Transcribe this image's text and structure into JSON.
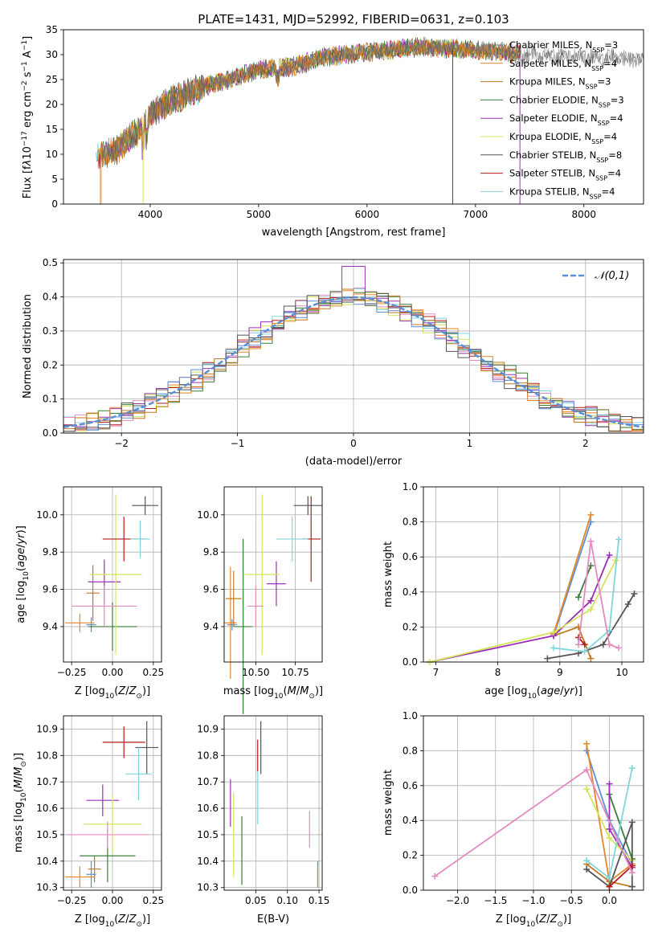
{
  "figure": {
    "title": "PLATE=1431, MJD=52992, FIBERID=0631, z=0.103"
  },
  "models": [
    {
      "name": "Chabrier MILES",
      "nssp": "3",
      "color": "#7f7f7f"
    },
    {
      "name": "Salpeter MILES",
      "nssp": "4",
      "color": "#e5862b"
    },
    {
      "name": "Kroupa MILES",
      "nssp": "3",
      "color": "#c07a20"
    },
    {
      "name": "Chabrier ELODIE",
      "nssp": "3",
      "color": "#3a7d3a"
    },
    {
      "name": "Salpeter ELODIE",
      "nssp": "4",
      "color": "#9b30b5"
    },
    {
      "name": "Kroupa ELODIE",
      "nssp": "4",
      "color": "#d4e35a"
    },
    {
      "name": "Chabrier STELIB",
      "nssp": "8",
      "color": "#555555"
    },
    {
      "name": "Salpeter STELIB",
      "nssp": "4",
      "color": "#b81c1c"
    },
    {
      "name": "Kroupa STELIB",
      "nssp": "4",
      "color": "#7fd6dc"
    }
  ],
  "chart_data": [
    {
      "id": "spectrum",
      "type": "line",
      "xlabel": "wavelength [Angstrom, rest frame]",
      "ylabel": "Flux [f_λ 10^-17 erg cm^-2 s^-1 A^-1]",
      "xlim": [
        3200,
        8550
      ],
      "ylim": [
        0,
        35
      ],
      "xticks": [
        4000,
        5000,
        6000,
        7000,
        8000
      ],
      "yticks": [
        0,
        5,
        10,
        15,
        20,
        25,
        30,
        35
      ],
      "continuum": [
        [
          3500,
          9
        ],
        [
          3700,
          11
        ],
        [
          3900,
          15
        ],
        [
          4000,
          18
        ],
        [
          4200,
          21
        ],
        [
          4500,
          23.5
        ],
        [
          4800,
          25.5
        ],
        [
          5000,
          27
        ],
        [
          5300,
          27.5
        ],
        [
          5600,
          29.5
        ],
        [
          6000,
          30.5
        ],
        [
          6500,
          31.5
        ],
        [
          7000,
          31
        ],
        [
          7500,
          30
        ],
        [
          8000,
          29.5
        ],
        [
          8550,
          29
        ]
      ],
      "legend": "right"
    },
    {
      "id": "residuals",
      "type": "histogram",
      "xlabel": "(data-model)/error",
      "ylabel": "Normed distribution",
      "xlim": [
        -2.5,
        2.5
      ],
      "ylim": [
        0,
        0.51
      ],
      "xticks": [
        -2,
        -1,
        0,
        1,
        2
      ],
      "yticks": [
        0.0,
        0.1,
        0.2,
        0.3,
        0.4,
        0.5
      ],
      "bin_width": 0.1,
      "reference_curve": "𝒩(0,1)",
      "legend": "top-right"
    },
    {
      "id": "age-vs-Z",
      "type": "errorbar",
      "xlabel": "Z [log10(Z/Z⊙)]",
      "ylabel": "age  [log10(age/yr)]",
      "xlim": [
        -0.3,
        0.3
      ],
      "ylim": [
        9.21,
        10.15
      ],
      "xticks": [
        -0.25,
        0.0,
        0.25
      ],
      "yticks": [
        9.4,
        9.6,
        9.8,
        10.0
      ],
      "points": [
        {
          "model": 0,
          "x": -0.13,
          "xerr": 0.03,
          "y": 9.41,
          "yerr": 0.04
        },
        {
          "model": 1,
          "x": -0.2,
          "xerr": 0.09,
          "y": 9.42,
          "yerr": 0.05
        },
        {
          "model": 2,
          "x": -0.12,
          "xerr": 0.04,
          "y": 9.58,
          "yerr": 0.15
        },
        {
          "model": 3,
          "x": 0.0,
          "xerr": 0.15,
          "y": 9.4,
          "yerr": 0.13
        },
        {
          "model": 4,
          "x": -0.05,
          "xerr": 0.1,
          "y": 9.64,
          "yerr": 0.12
        },
        {
          "model": 5,
          "x": 0.02,
          "xerr": 0.16,
          "y": 9.68,
          "yerr": 0.43
        },
        {
          "model": 6,
          "x": 0.2,
          "xerr": 0.08,
          "y": 10.05,
          "yerr": 0.05
        },
        {
          "model": 7,
          "x": 0.07,
          "xerr": 0.13,
          "y": 9.87,
          "yerr": 0.12
        },
        {
          "model": 8,
          "x": 0.17,
          "xerr": 0.06,
          "y": 9.87,
          "yerr": 0.1
        },
        {
          "model": 9,
          "x": -0.05,
          "xerr": 0.2,
          "y": 9.51,
          "yerr": 0.11
        }
      ]
    },
    {
      "id": "age-vs-mass",
      "type": "errorbar",
      "xlabel": "mass [log10(M/M⊙)]",
      "ylabel": "",
      "xlim": [
        10.3,
        10.92
      ],
      "ylim": [
        9.21,
        10.15
      ],
      "xticks": [
        10.5,
        10.75
      ],
      "yticks": [
        9.4,
        9.6,
        9.8,
        10.0
      ],
      "points": [
        {
          "model": 0,
          "x": 10.35,
          "xerr": 0.03,
          "y": 9.41,
          "yerr": 0.03
        },
        {
          "model": 1,
          "x": 10.34,
          "xerr": 0.04,
          "y": 9.42,
          "yerr": 0.3
        },
        {
          "model": 2,
          "x": 10.36,
          "xerr": 0.05,
          "y": 9.55,
          "yerr": 0.15
        },
        {
          "model": 3,
          "x": 10.42,
          "xerr": 0.06,
          "y": 9.4,
          "yerr": 0.47
        },
        {
          "model": 4,
          "x": 10.63,
          "xerr": 0.06,
          "y": 9.63,
          "yerr": 0.12
        },
        {
          "model": 5,
          "x": 10.54,
          "xerr": 0.11,
          "y": 9.68,
          "yerr": 0.43
        },
        {
          "model": 6,
          "x": 10.83,
          "xerr": 0.09,
          "y": 10.05,
          "yerr": 0.05
        },
        {
          "model": 7,
          "x": 10.85,
          "xerr": 0.06,
          "y": 9.87,
          "yerr": 0.23
        },
        {
          "model": 8,
          "x": 10.73,
          "xerr": 0.1,
          "y": 9.87,
          "yerr": 0.12
        },
        {
          "model": 9,
          "x": 10.5,
          "xerr": 0.05,
          "y": 9.51,
          "yerr": 0.11
        }
      ]
    },
    {
      "id": "weight-vs-age",
      "type": "line",
      "xlabel": "age  [log10(age/yr)]",
      "ylabel": "mass weight",
      "xlim": [
        6.8,
        10.35
      ],
      "ylim": [
        0,
        1.0
      ],
      "xticks": [
        7,
        8,
        9,
        10
      ],
      "yticks": [
        0.0,
        0.2,
        0.4,
        0.6,
        0.8,
        1.0
      ],
      "series": [
        {
          "model": 0,
          "x": [
            8.9,
            9.5
          ],
          "y": [
            0.15,
            0.8
          ]
        },
        {
          "model": 1,
          "x": [
            8.9,
            9.5
          ],
          "y": [
            0.16,
            0.84
          ]
        },
        {
          "model": 2,
          "x": [
            8.9,
            9.3,
            9.5
          ],
          "y": [
            0.15,
            0.2,
            0.02
          ]
        },
        {
          "model": 3,
          "x": [
            9.3,
            9.5
          ],
          "y": [
            0.37,
            0.55
          ]
        },
        {
          "model": 4,
          "x": [
            6.9,
            8.9,
            9.5,
            9.8
          ],
          "y": [
            0.0,
            0.15,
            0.35,
            0.61
          ]
        },
        {
          "model": 5,
          "x": [
            6.9,
            8.9,
            9.5,
            9.9
          ],
          "y": [
            0.0,
            0.17,
            0.3,
            0.58
          ]
        },
        {
          "model": 6,
          "x": [
            8.8,
            9.3,
            9.7,
            10.1,
            10.2
          ],
          "y": [
            0.02,
            0.05,
            0.1,
            0.33,
            0.39
          ]
        },
        {
          "model": 7,
          "x": [
            9.3,
            9.4
          ],
          "y": [
            0.14,
            0.1
          ]
        },
        {
          "model": 8,
          "x": [
            8.9,
            9.4,
            9.8,
            9.95
          ],
          "y": [
            0.08,
            0.06,
            0.18,
            0.7
          ]
        },
        {
          "model": 9,
          "x": [
            9.3,
            9.5,
            9.8,
            9.95
          ],
          "y": [
            0.1,
            0.69,
            0.1,
            0.08
          ]
        }
      ]
    },
    {
      "id": "mass-vs-Z",
      "type": "errorbar",
      "xlabel": "Z [log10(Z/Z⊙)]",
      "ylabel": "mass [log10(M/M⊙)]",
      "xlim": [
        -0.3,
        0.3
      ],
      "ylim": [
        10.29,
        10.95
      ],
      "xticks": [
        -0.25,
        0.0,
        0.25
      ],
      "yticks": [
        10.3,
        10.4,
        10.5,
        10.6,
        10.7,
        10.8,
        10.9
      ],
      "points": [
        {
          "model": 0,
          "x": -0.13,
          "xerr": 0.03,
          "y": 10.35,
          "yerr": 0.05
        },
        {
          "model": 1,
          "x": -0.2,
          "xerr": 0.09,
          "y": 10.34,
          "yerr": 0.04
        },
        {
          "model": 2,
          "x": -0.11,
          "xerr": 0.04,
          "y": 10.37,
          "yerr": 0.05
        },
        {
          "model": 3,
          "x": -0.03,
          "xerr": 0.17,
          "y": 10.42,
          "yerr": 0.1
        },
        {
          "model": 4,
          "x": -0.06,
          "xerr": 0.1,
          "y": 10.63,
          "yerr": 0.06
        },
        {
          "model": 5,
          "x": 0.0,
          "xerr": 0.18,
          "y": 10.54,
          "yerr": 0.11
        },
        {
          "model": 6,
          "x": 0.21,
          "xerr": 0.07,
          "y": 10.83,
          "yerr": 0.1
        },
        {
          "model": 7,
          "x": 0.07,
          "xerr": 0.13,
          "y": 10.85,
          "yerr": 0.06
        },
        {
          "model": 8,
          "x": 0.16,
          "xerr": 0.08,
          "y": 10.73,
          "yerr": 0.1
        },
        {
          "model": 9,
          "x": -0.03,
          "xerr": 0.25,
          "y": 10.5,
          "yerr": 0.05
        }
      ]
    },
    {
      "id": "mass-vs-EBV",
      "type": "errorbar",
      "xlabel": "E(B-V)",
      "ylabel": "",
      "xlim": [
        0.0,
        0.155
      ],
      "ylim": [
        10.29,
        10.95
      ],
      "xticks": [
        0.05,
        0.1,
        0.15
      ],
      "yticks": [
        10.3,
        10.4,
        10.5,
        10.6,
        10.7,
        10.8,
        10.9
      ],
      "points": [
        {
          "model": 0,
          "x": 0.148,
          "xerr": 0,
          "y": 10.35,
          "yerr": 0.05
        },
        {
          "model": 1,
          "x": 0.148,
          "xerr": 0,
          "y": 10.34,
          "yerr": 0.04
        },
        {
          "model": 3,
          "x": 0.028,
          "xerr": 0,
          "y": 10.44,
          "yerr": 0.13
        },
        {
          "model": 4,
          "x": 0.01,
          "xerr": 0,
          "y": 10.62,
          "yerr": 0.09
        },
        {
          "model": 5,
          "x": 0.015,
          "xerr": 0,
          "y": 10.5,
          "yerr": 0.16
        },
        {
          "model": 6,
          "x": 0.058,
          "xerr": 0,
          "y": 10.83,
          "yerr": 0.1
        },
        {
          "model": 7,
          "x": 0.053,
          "xerr": 0,
          "y": 10.8,
          "yerr": 0.06
        },
        {
          "model": 8,
          "x": 0.053,
          "xerr": 0,
          "y": 10.64,
          "yerr": 0.1
        },
        {
          "model": 9,
          "x": 0.135,
          "xerr": 0,
          "y": 10.52,
          "yerr": 0.07
        }
      ]
    },
    {
      "id": "weight-vs-Z",
      "type": "line",
      "xlabel": "Z [log10(Z/Z⊙)]",
      "ylabel": "mass weight",
      "xlim": [
        -2.45,
        0.45
      ],
      "ylim": [
        0,
        1.0
      ],
      "xticks": [
        -2.0,
        -1.5,
        -1.0,
        -0.5,
        0.0
      ],
      "yticks": [
        0.0,
        0.2,
        0.4,
        0.6,
        0.8,
        1.0
      ],
      "series": [
        {
          "model": 0,
          "x": [
            -0.3,
            0.0,
            0.3
          ],
          "y": [
            0.8,
            0.4,
            0.15
          ]
        },
        {
          "model": 1,
          "x": [
            -0.3,
            0.0,
            0.3
          ],
          "y": [
            0.84,
            0.05,
            0.15
          ]
        },
        {
          "model": 2,
          "x": [
            -0.3,
            0.0,
            0.3
          ],
          "y": [
            0.15,
            0.05,
            0.02
          ]
        },
        {
          "model": 3,
          "x": [
            0.0,
            0.3
          ],
          "y": [
            0.55,
            0.18
          ]
        },
        {
          "model": 4,
          "x": [
            0.0,
            0.0,
            0.3
          ],
          "y": [
            0.61,
            0.35,
            0.13
          ]
        },
        {
          "model": 5,
          "x": [
            -0.3,
            0.0,
            0.3
          ],
          "y": [
            0.58,
            0.3,
            0.17
          ]
        },
        {
          "model": 6,
          "x": [
            -0.3,
            0.0,
            0.3,
            0.3
          ],
          "y": [
            0.12,
            0.02,
            0.39,
            0.02
          ]
        },
        {
          "model": 7,
          "x": [
            0.0,
            0.3
          ],
          "y": [
            0.02,
            0.14
          ]
        },
        {
          "model": 8,
          "x": [
            -0.3,
            0.0,
            0.3
          ],
          "y": [
            0.17,
            0.07,
            0.7
          ]
        },
        {
          "model": 9,
          "x": [
            -2.3,
            -0.3,
            0.3
          ],
          "y": [
            0.08,
            0.69,
            0.1
          ]
        }
      ]
    }
  ]
}
